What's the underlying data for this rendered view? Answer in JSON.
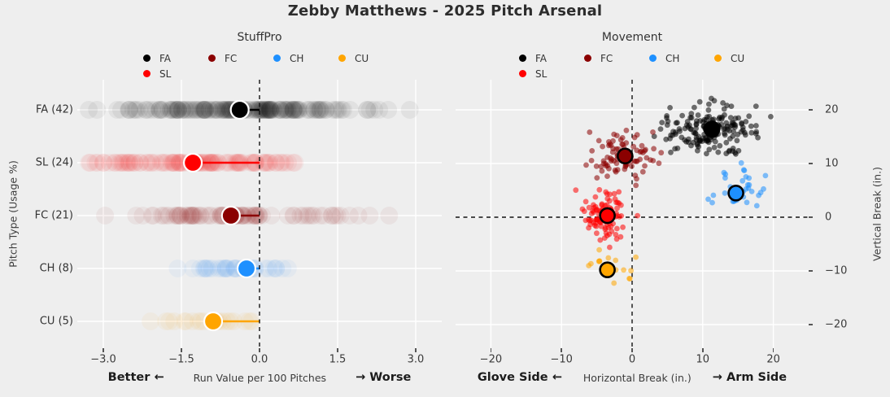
{
  "figure": {
    "title": "Zebby Matthews - 2025 Pitch Arsenal",
    "background": "#eeeeee",
    "gridline_color": "#ffffff"
  },
  "legend": {
    "items": [
      {
        "code": "FA",
        "label": "FA",
        "color": "#000000"
      },
      {
        "code": "FC",
        "label": "FC",
        "color": "#8b0000"
      },
      {
        "code": "CH",
        "label": "CH",
        "color": "#1e90ff"
      },
      {
        "code": "CU",
        "label": "CU",
        "color": "#ffa500"
      },
      {
        "code": "SL",
        "label": "SL",
        "color": "#ff0000"
      }
    ]
  },
  "chart_data": [
    {
      "id": "stuffpro",
      "type": "strip",
      "title": "StuffPro",
      "xlabel_left": "Better ←",
      "xlabel": "Run Value per 100 Pitches",
      "xlabel_right": "→ Worse",
      "ylabel": "Pitch Type (Usage %)",
      "xlim": [
        -3.5,
        3.5
      ],
      "xticks": [
        {
          "v": -3.0,
          "label": "−3.0"
        },
        {
          "v": -1.5,
          "label": "−1.5"
        },
        {
          "v": 0.0,
          "label": "0.0"
        },
        {
          "v": 1.5,
          "label": "1.5"
        },
        {
          "v": 3.0,
          "label": "3.0"
        }
      ],
      "zero_line": 0.0,
      "grid": true,
      "rows": [
        {
          "pitch": "FA",
          "label": "FA (42)",
          "usage_pct": 42,
          "mean_rv100": -0.38,
          "n_points_est": 176,
          "spread_sd": 1.25,
          "range": [
            -3.4,
            3.1
          ],
          "color": "#000000"
        },
        {
          "pitch": "SL",
          "label": "SL (24)",
          "usage_pct": 24,
          "mean_rv100": -1.28,
          "n_points_est": 101,
          "spread_sd": 1.0,
          "range": [
            -3.45,
            1.3
          ],
          "color": "#ff0000"
        },
        {
          "pitch": "FC",
          "label": "FC (21)",
          "usage_pct": 21,
          "mean_rv100": -0.55,
          "n_points_est": 88,
          "spread_sd": 1.1,
          "range": [
            -3.0,
            3.3
          ],
          "color": "#8b0000"
        },
        {
          "pitch": "CH",
          "label": "CH (8)",
          "usage_pct": 8,
          "mean_rv100": -0.25,
          "n_points_est": 34,
          "spread_sd": 0.65,
          "range": [
            -1.6,
            1.3
          ],
          "color": "#1e90ff"
        },
        {
          "pitch": "CU",
          "label": "CU (5)",
          "usage_pct": 5,
          "mean_rv100": -0.89,
          "n_points_est": 21,
          "spread_sd": 0.8,
          "range": [
            -2.8,
            0.55
          ],
          "color": "#ffa500"
        }
      ]
    },
    {
      "id": "movement",
      "type": "scatter",
      "title": "Movement",
      "xlabel_left": "Glove Side ←",
      "xlabel": "Horizontal Break (in.)",
      "xlabel_right": "→ Arm Side",
      "ylabel": "Vertical Break (in.)",
      "xlim": [
        -25,
        25
      ],
      "ylim": [
        -25,
        25
      ],
      "xticks": [
        {
          "v": -20,
          "label": "−20"
        },
        {
          "v": -10,
          "label": "−10"
        },
        {
          "v": 0,
          "label": "0"
        },
        {
          "v": 10,
          "label": "10"
        },
        {
          "v": 20,
          "label": "20"
        }
      ],
      "yticks": [
        {
          "v": 20,
          "label": "20"
        },
        {
          "v": 10,
          "label": "10"
        },
        {
          "v": 0,
          "label": "0"
        },
        {
          "v": -10,
          "label": "−10"
        },
        {
          "v": -20,
          "label": "−20"
        }
      ],
      "crosshair": {
        "x": 0,
        "y": 0
      },
      "grid": true,
      "clusters": [
        {
          "pitch": "FA",
          "mean_hb": 11.3,
          "mean_vb": 16.4,
          "sd_hb": 3.1,
          "sd_vb": 2.3,
          "n_points_est": 176,
          "color": "#000000"
        },
        {
          "pitch": "FC",
          "mean_hb": -1.0,
          "mean_vb": 11.4,
          "sd_hb": 2.5,
          "sd_vb": 2.2,
          "n_points_est": 88,
          "color": "#8b0000"
        },
        {
          "pitch": "SL",
          "mean_hb": -3.5,
          "mean_vb": 0.3,
          "sd_hb": 1.7,
          "sd_vb": 2.3,
          "n_points_est": 101,
          "color": "#ff0000"
        },
        {
          "pitch": "CH",
          "mean_hb": 14.7,
          "mean_vb": 4.5,
          "sd_hb": 2.1,
          "sd_vb": 2.2,
          "n_points_est": 34,
          "color": "#1e90ff"
        },
        {
          "pitch": "CU",
          "mean_hb": -3.5,
          "mean_vb": -9.8,
          "sd_hb": 1.8,
          "sd_vb": 1.6,
          "n_points_est": 21,
          "color": "#ffa500"
        }
      ]
    }
  ]
}
